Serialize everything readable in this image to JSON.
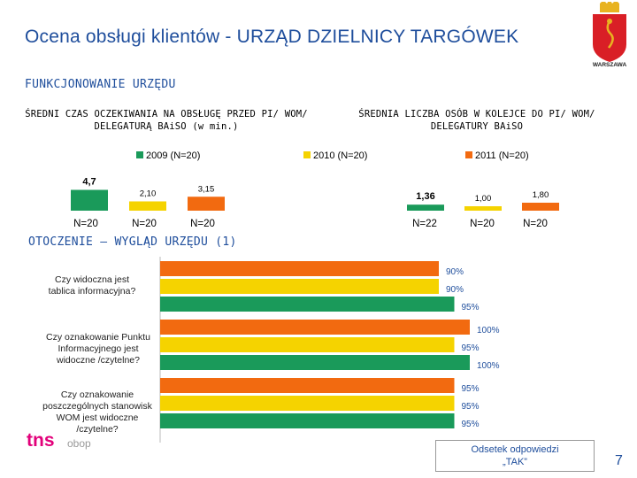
{
  "title": "Ocena obsługi klientów - URZĄD DZIELNICY TARGÓWEK",
  "logo": {
    "text": "WARSZAWA",
    "colors": {
      "shield": "#d91f26",
      "crown": "#e8b320"
    }
  },
  "sections": {
    "functioning": "FUNKCJONOWANIE URZĘDU",
    "surroundings": "OTOCZENIE – WYGLĄD URZĘDU (1)"
  },
  "colors": {
    "c2009": "#1a9a5a",
    "c2010": "#f5d300",
    "c2011": "#f26a10",
    "accent": "#1f4e9c"
  },
  "legend": [
    {
      "label": "2009 (N=20)",
      "color": "#1a9a5a"
    },
    {
      "label": "2010 (N=20)",
      "color": "#f5d300"
    },
    {
      "label": "2011 (N=20)",
      "color": "#f26a10"
    }
  ],
  "chart_data": [
    {
      "type": "bar",
      "title": "ŚREDNI CZAS OCZEKIWANIA NA OBSŁUGĘ PRZED PI/ WOM/ DELEGATURĄ BAiSO (w min.)",
      "categories": [
        "2009",
        "2010",
        "2011"
      ],
      "values": [
        4.7,
        2.1,
        3.15
      ],
      "value_labels": [
        "4,7",
        "2,10",
        "3,15"
      ],
      "n_labels": [
        "N=20",
        "N=20",
        "N=20"
      ],
      "colors": [
        "#1a9a5a",
        "#f5d300",
        "#f26a10"
      ],
      "ylim": [
        0,
        7
      ]
    },
    {
      "type": "bar",
      "title": "ŚREDNIA LICZBA OSÓB W KOLEJCE DO PI/ WOM/ DELEGATURY BAiSO",
      "categories": [
        "2009",
        "2010",
        "2011"
      ],
      "values": [
        1.36,
        1.0,
        1.8
      ],
      "value_labels": [
        "1,36",
        "1,00",
        "1,80"
      ],
      "n_labels": [
        "N=22",
        "N=20",
        "N=20"
      ],
      "colors": [
        "#1a9a5a",
        "#f5d300",
        "#f26a10"
      ],
      "ylim": [
        0,
        7
      ]
    },
    {
      "type": "bar",
      "orientation": "horizontal",
      "title": "OTOCZENIE – WYGLĄD URZĘDU (1)",
      "xlim": [
        0,
        100
      ],
      "series_order": [
        "2011",
        "2010",
        "2009"
      ],
      "colors": [
        "#f26a10",
        "#f5d300",
        "#1a9a5a"
      ],
      "questions": [
        {
          "label": "Czy widoczna jest tablica informacyjna?",
          "values": [
            90,
            90,
            95
          ],
          "value_labels": [
            "90%",
            "90%",
            "95%"
          ]
        },
        {
          "label": "Czy oznakowanie Punktu Informacyjnego jest widoczne /czytelne?",
          "values": [
            100,
            95,
            100
          ],
          "value_labels": [
            "100%",
            "95%",
            "100%"
          ]
        },
        {
          "label": "Czy oznakowanie poszczególnych stanowisk WOM jest widoczne /czytelne?",
          "values": [
            95,
            95,
            95
          ],
          "value_labels": [
            "95%",
            "95%",
            "95%"
          ]
        }
      ]
    }
  ],
  "footer": {
    "brand_main": "tns",
    "brand_sub": "obop",
    "answer_note_line1": "Odsetek odpowiedzi",
    "answer_note_line2": "„TAK”",
    "page": "7"
  }
}
